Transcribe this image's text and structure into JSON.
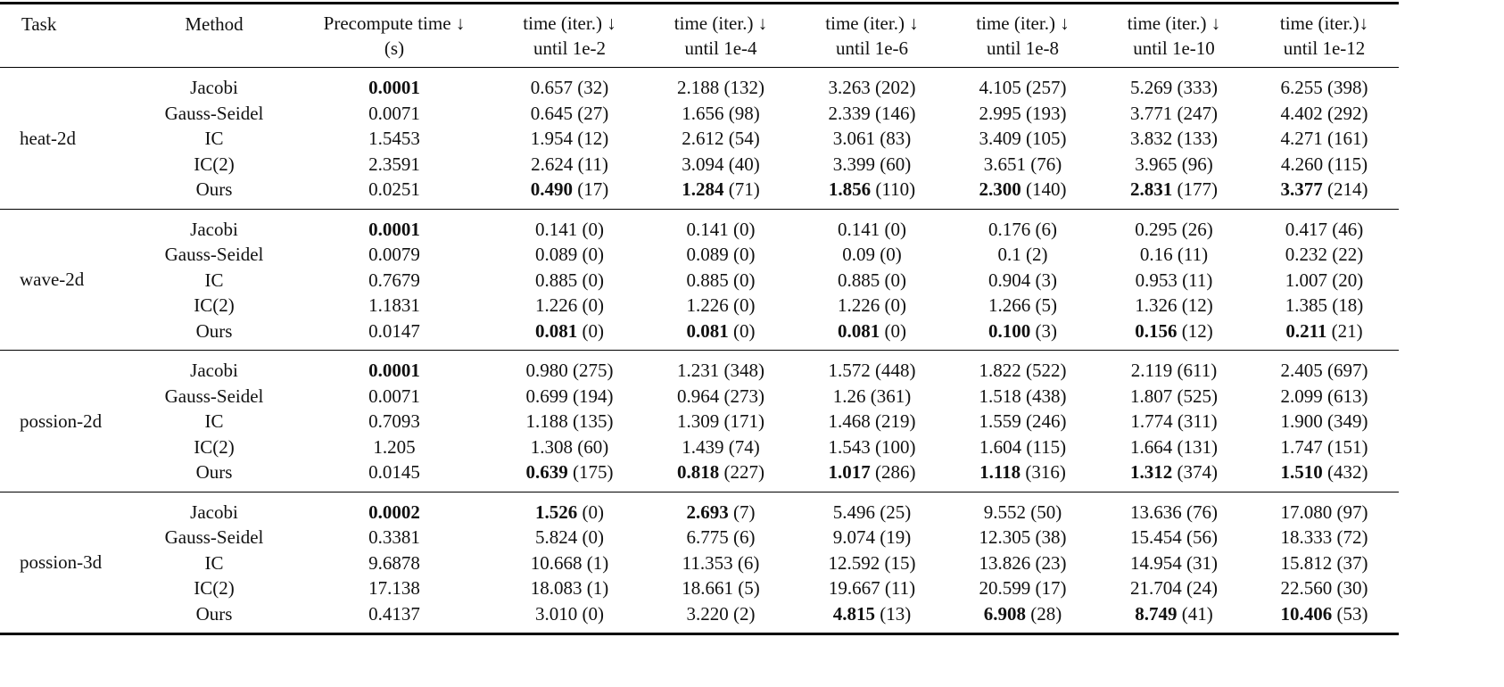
{
  "table": {
    "header": [
      [
        "Task"
      ],
      [
        "Method"
      ],
      [
        "Precompute time ↓",
        "(s)"
      ],
      [
        "time (iter.) ↓",
        "until 1e-2"
      ],
      [
        "time (iter.) ↓",
        "until 1e-4"
      ],
      [
        "time (iter.) ↓",
        "until 1e-6"
      ],
      [
        "time (iter.) ↓",
        "until 1e-8"
      ],
      [
        "time (iter.) ↓",
        "until 1e-10"
      ],
      [
        "time (iter.)↓",
        "until 1e-12"
      ]
    ],
    "groups": [
      {
        "task": "heat-2d",
        "rows": [
          {
            "method": "Jacobi",
            "pre": "0.0001",
            "pre_bold": true,
            "cells": [
              [
                "0.657",
                "(32)"
              ],
              [
                "2.188",
                "(132)"
              ],
              [
                "3.263",
                "(202)"
              ],
              [
                "4.105",
                "(257)"
              ],
              [
                "5.269",
                "(333)"
              ],
              [
                "6.255",
                "(398)"
              ]
            ],
            "bold": []
          },
          {
            "method": "Gauss-Seidel",
            "pre": "0.0071",
            "cells": [
              [
                "0.645",
                "(27)"
              ],
              [
                "1.656",
                "(98)"
              ],
              [
                "2.339",
                "(146)"
              ],
              [
                "2.995",
                "(193)"
              ],
              [
                "3.771",
                "(247)"
              ],
              [
                "4.402",
                "(292)"
              ]
            ],
            "bold": []
          },
          {
            "method": "IC",
            "pre": "1.5453",
            "cells": [
              [
                "1.954",
                "(12)"
              ],
              [
                "2.612",
                "(54)"
              ],
              [
                "3.061",
                "(83)"
              ],
              [
                "3.409",
                "(105)"
              ],
              [
                "3.832",
                "(133)"
              ],
              [
                "4.271",
                "(161)"
              ]
            ],
            "bold": []
          },
          {
            "method": "IC(2)",
            "pre": "2.3591",
            "cells": [
              [
                "2.624",
                "(11)"
              ],
              [
                "3.094",
                "(40)"
              ],
              [
                "3.399",
                "(60)"
              ],
              [
                "3.651",
                "(76)"
              ],
              [
                "3.965",
                "(96)"
              ],
              [
                "4.260",
                "(115)"
              ]
            ],
            "bold": []
          },
          {
            "method": "Ours",
            "pre": "0.0251",
            "cells": [
              [
                "0.490",
                "(17)"
              ],
              [
                "1.284",
                "(71)"
              ],
              [
                "1.856",
                "(110)"
              ],
              [
                "2.300",
                "(140)"
              ],
              [
                "2.831",
                "(177)"
              ],
              [
                "3.377",
                "(214)"
              ]
            ],
            "bold": [
              0,
              1,
              2,
              3,
              4,
              5
            ]
          }
        ]
      },
      {
        "task": "wave-2d",
        "rows": [
          {
            "method": "Jacobi",
            "pre": "0.0001",
            "pre_bold": true,
            "cells": [
              [
                "0.141",
                "(0)"
              ],
              [
                "0.141",
                "(0)"
              ],
              [
                "0.141",
                "(0)"
              ],
              [
                "0.176",
                "(6)"
              ],
              [
                "0.295",
                "(26)"
              ],
              [
                "0.417",
                "(46)"
              ]
            ],
            "bold": []
          },
          {
            "method": "Gauss-Seidel",
            "pre": "0.0079",
            "cells": [
              [
                "0.089",
                "(0)"
              ],
              [
                "0.089",
                "(0)"
              ],
              [
                "0.09",
                "(0)"
              ],
              [
                "0.1",
                "(2)"
              ],
              [
                "0.16",
                "(11)"
              ],
              [
                "0.232",
                "(22)"
              ]
            ],
            "bold": []
          },
          {
            "method": "IC",
            "pre": "0.7679",
            "cells": [
              [
                "0.885",
                "(0)"
              ],
              [
                "0.885",
                "(0)"
              ],
              [
                "0.885",
                "(0)"
              ],
              [
                "0.904",
                "(3)"
              ],
              [
                "0.953",
                "(11)"
              ],
              [
                "1.007",
                "(20)"
              ]
            ],
            "bold": []
          },
          {
            "method": "IC(2)",
            "pre": "1.1831",
            "cells": [
              [
                "1.226",
                "(0)"
              ],
              [
                "1.226",
                "(0)"
              ],
              [
                "1.226",
                "(0)"
              ],
              [
                "1.266",
                "(5)"
              ],
              [
                "1.326",
                "(12)"
              ],
              [
                "1.385",
                "(18)"
              ]
            ],
            "bold": []
          },
          {
            "method": "Ours",
            "pre": "0.0147",
            "cells": [
              [
                "0.081",
                "(0)"
              ],
              [
                "0.081",
                "(0)"
              ],
              [
                "0.081",
                "(0)"
              ],
              [
                "0.100",
                "(3)"
              ],
              [
                "0.156",
                "(12)"
              ],
              [
                "0.211",
                "(21)"
              ]
            ],
            "bold": [
              0,
              1,
              2,
              3,
              4,
              5
            ]
          }
        ]
      },
      {
        "task": "possion-2d",
        "rows": [
          {
            "method": "Jacobi",
            "pre": "0.0001",
            "pre_bold": true,
            "cells": [
              [
                "0.980",
                "(275)"
              ],
              [
                "1.231",
                "(348)"
              ],
              [
                "1.572",
                "(448)"
              ],
              [
                "1.822",
                "(522)"
              ],
              [
                "2.119",
                "(611)"
              ],
              [
                "2.405",
                "(697)"
              ]
            ],
            "bold": []
          },
          {
            "method": "Gauss-Seidel",
            "pre": "0.0071",
            "cells": [
              [
                "0.699",
                "(194)"
              ],
              [
                "0.964",
                "(273)"
              ],
              [
                "1.26",
                "(361)"
              ],
              [
                "1.518",
                "(438)"
              ],
              [
                "1.807",
                "(525)"
              ],
              [
                "2.099",
                "(613)"
              ]
            ],
            "bold": []
          },
          {
            "method": "IC",
            "pre": "0.7093",
            "cells": [
              [
                "1.188",
                "(135)"
              ],
              [
                "1.309",
                "(171)"
              ],
              [
                "1.468",
                "(219)"
              ],
              [
                "1.559",
                "(246)"
              ],
              [
                "1.774",
                "(311)"
              ],
              [
                "1.900",
                "(349)"
              ]
            ],
            "bold": []
          },
          {
            "method": "IC(2)",
            "pre": "1.205",
            "cells": [
              [
                "1.308",
                "(60)"
              ],
              [
                "1.439",
                "(74)"
              ],
              [
                "1.543",
                "(100)"
              ],
              [
                "1.604",
                "(115)"
              ],
              [
                "1.664",
                "(131)"
              ],
              [
                "1.747",
                "(151)"
              ]
            ],
            "bold": []
          },
          {
            "method": "Ours",
            "pre": "0.0145",
            "cells": [
              [
                "0.639",
                "(175)"
              ],
              [
                "0.818",
                "(227)"
              ],
              [
                "1.017",
                "(286)"
              ],
              [
                "1.118",
                "(316)"
              ],
              [
                "1.312",
                "(374)"
              ],
              [
                "1.510",
                "(432)"
              ]
            ],
            "bold": [
              0,
              1,
              2,
              3,
              4,
              5
            ]
          }
        ]
      },
      {
        "task": "possion-3d",
        "rows": [
          {
            "method": "Jacobi",
            "pre": "0.0002",
            "pre_bold": true,
            "cells": [
              [
                "1.526",
                "(0)"
              ],
              [
                "2.693",
                "(7)"
              ],
              [
                "5.496",
                "(25)"
              ],
              [
                "9.552",
                "(50)"
              ],
              [
                "13.636",
                "(76)"
              ],
              [
                "17.080",
                "(97)"
              ]
            ],
            "bold": [
              0,
              1
            ]
          },
          {
            "method": "Gauss-Seidel",
            "pre": "0.3381",
            "cells": [
              [
                "5.824",
                "(0)"
              ],
              [
                "6.775",
                "(6)"
              ],
              [
                "9.074",
                "(19)"
              ],
              [
                "12.305",
                "(38)"
              ],
              [
                "15.454",
                "(56)"
              ],
              [
                "18.333",
                "(72)"
              ]
            ],
            "bold": []
          },
          {
            "method": "IC",
            "pre": "9.6878",
            "cells": [
              [
                "10.668",
                "(1)"
              ],
              [
                "11.353",
                "(6)"
              ],
              [
                "12.592",
                "(15)"
              ],
              [
                "13.826",
                "(23)"
              ],
              [
                "14.954",
                "(31)"
              ],
              [
                "15.812",
                "(37)"
              ]
            ],
            "bold": []
          },
          {
            "method": "IC(2)",
            "pre": "17.138",
            "cells": [
              [
                "18.083",
                "(1)"
              ],
              [
                "18.661",
                "(5)"
              ],
              [
                "19.667",
                "(11)"
              ],
              [
                "20.599",
                "(17)"
              ],
              [
                "21.704",
                "(24)"
              ],
              [
                "22.560",
                "(30)"
              ]
            ],
            "bold": []
          },
          {
            "method": "Ours",
            "pre": "0.4137",
            "cells": [
              [
                "3.010",
                "(0)"
              ],
              [
                "3.220",
                "(2)"
              ],
              [
                "4.815",
                "(13)"
              ],
              [
                "6.908",
                "(28)"
              ],
              [
                "8.749",
                "(41)"
              ],
              [
                "10.406",
                "(53)"
              ]
            ],
            "bold": [
              2,
              3,
              4,
              5
            ]
          }
        ]
      }
    ]
  }
}
